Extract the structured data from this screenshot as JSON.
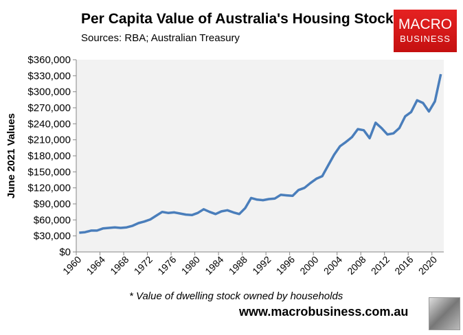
{
  "header": {
    "title": "Per Capita Value of Australia's Housing Stock*",
    "subtitle": "Sources: RBA; Australian Treasury"
  },
  "logo": {
    "line1": "MACRO",
    "line2": "BUSINESS",
    "color": "#d91a1a"
  },
  "footer": {
    "note": "* Value of dwelling stock owned by households",
    "url": "www.macrobusiness.com.au"
  },
  "chart_data": {
    "type": "line",
    "title": "Per Capita Value of Australia's Housing Stock*",
    "ylabel": "June 2021 Values",
    "xlabel": "",
    "ylim": [
      0,
      360000
    ],
    "yticks": [
      "$0",
      "$30,000",
      "$60,000",
      "$90,000",
      "$120,000",
      "$150,000",
      "$180,000",
      "$210,000",
      "$240,000",
      "$270,000",
      "$300,000",
      "$330,000",
      "$360,000"
    ],
    "xticks": [
      "1960",
      "1964",
      "1968",
      "1972",
      "1976",
      "1980",
      "1984",
      "1988",
      "1992",
      "1996",
      "2000",
      "2004",
      "2008",
      "2012",
      "2016",
      "2020"
    ],
    "x_start": 1960,
    "series": [
      {
        "name": "Per capita housing value",
        "color": "#4a7ebb",
        "values": [
          36000,
          37000,
          40000,
          40000,
          44000,
          45000,
          46000,
          45000,
          46000,
          49000,
          54000,
          57000,
          61000,
          68000,
          75000,
          73000,
          74000,
          72000,
          70000,
          69000,
          73000,
          80000,
          75000,
          71000,
          76000,
          78000,
          74000,
          71000,
          82000,
          101000,
          98000,
          97000,
          99000,
          100000,
          107000,
          106000,
          105000,
          116000,
          120000,
          129000,
          137000,
          142000,
          162000,
          182000,
          198000,
          206000,
          215000,
          230000,
          228000,
          213000,
          242000,
          232000,
          220000,
          222000,
          232000,
          254000,
          262000,
          284000,
          279000,
          263000,
          282000,
          333000
        ]
      }
    ],
    "grid": false,
    "legend": "none"
  }
}
